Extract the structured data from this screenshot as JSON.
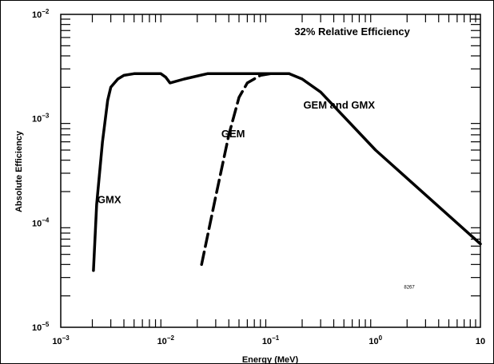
{
  "chart_data": {
    "type": "line",
    "xlabel": "Energy (MeV)",
    "ylabel": "Absolute Efficiency",
    "xscale": "log",
    "yscale": "log",
    "xlim": [
      0.001,
      10
    ],
    "ylim": [
      1e-05,
      0.01
    ],
    "grid": false,
    "x_ticks": [
      {
        "base": "10",
        "exp": "−3"
      },
      {
        "base": "10",
        "exp": "−2"
      },
      {
        "base": "10",
        "exp": "−1"
      },
      {
        "base": "10",
        "exp": "0"
      },
      {
        "base": "10",
        "exp": ""
      }
    ],
    "y_ticks": [
      {
        "base": "10",
        "exp": "−5"
      },
      {
        "base": "10",
        "exp": "−4"
      },
      {
        "base": "10",
        "exp": "−3"
      },
      {
        "base": "10",
        "exp": "−2"
      }
    ],
    "annotations": [
      {
        "text": "32% Relative Efficiency",
        "x": 0.6,
        "y": 0.0063
      },
      {
        "text": "GEM and GMX",
        "x": 0.45,
        "y": 0.00125
      },
      {
        "text": "GEM",
        "x": 0.044,
        "y": 0.00066
      },
      {
        "text": "GMX",
        "x": 0.0029,
        "y": 0.000155
      },
      {
        "text": "8267",
        "x": 2.1,
        "y": 2.36e-05
      }
    ],
    "series": [
      {
        "name": "GMX",
        "style": "solid",
        "points": [
          [
            0.00205,
            3.5e-05
          ],
          [
            0.0022,
            0.00015
          ],
          [
            0.0025,
            0.0006
          ],
          [
            0.0028,
            0.0015
          ],
          [
            0.003,
            0.002
          ],
          [
            0.0035,
            0.0024
          ],
          [
            0.004,
            0.0026
          ],
          [
            0.005,
            0.0027
          ],
          [
            0.007,
            0.0027
          ],
          [
            0.009,
            0.0027
          ],
          [
            0.01,
            0.0025
          ],
          [
            0.011,
            0.0022
          ],
          [
            0.015,
            0.0024
          ],
          [
            0.025,
            0.0027
          ],
          [
            0.05,
            0.0027
          ],
          [
            0.1,
            0.0027
          ],
          [
            0.15,
            0.0027
          ],
          [
            0.2,
            0.0024
          ],
          [
            0.3,
            0.0018
          ],
          [
            1,
            0.0005
          ],
          [
            10,
            6.3e-05
          ]
        ]
      },
      {
        "name": "GEM",
        "style": "dashed",
        "points": [
          [
            0.022,
            4e-05
          ],
          [
            0.03,
            0.00018
          ],
          [
            0.04,
            0.0007
          ],
          [
            0.05,
            0.0016
          ],
          [
            0.06,
            0.0022
          ],
          [
            0.08,
            0.0026
          ],
          [
            0.1,
            0.0027
          ],
          [
            0.15,
            0.0027
          ]
        ]
      }
    ]
  }
}
